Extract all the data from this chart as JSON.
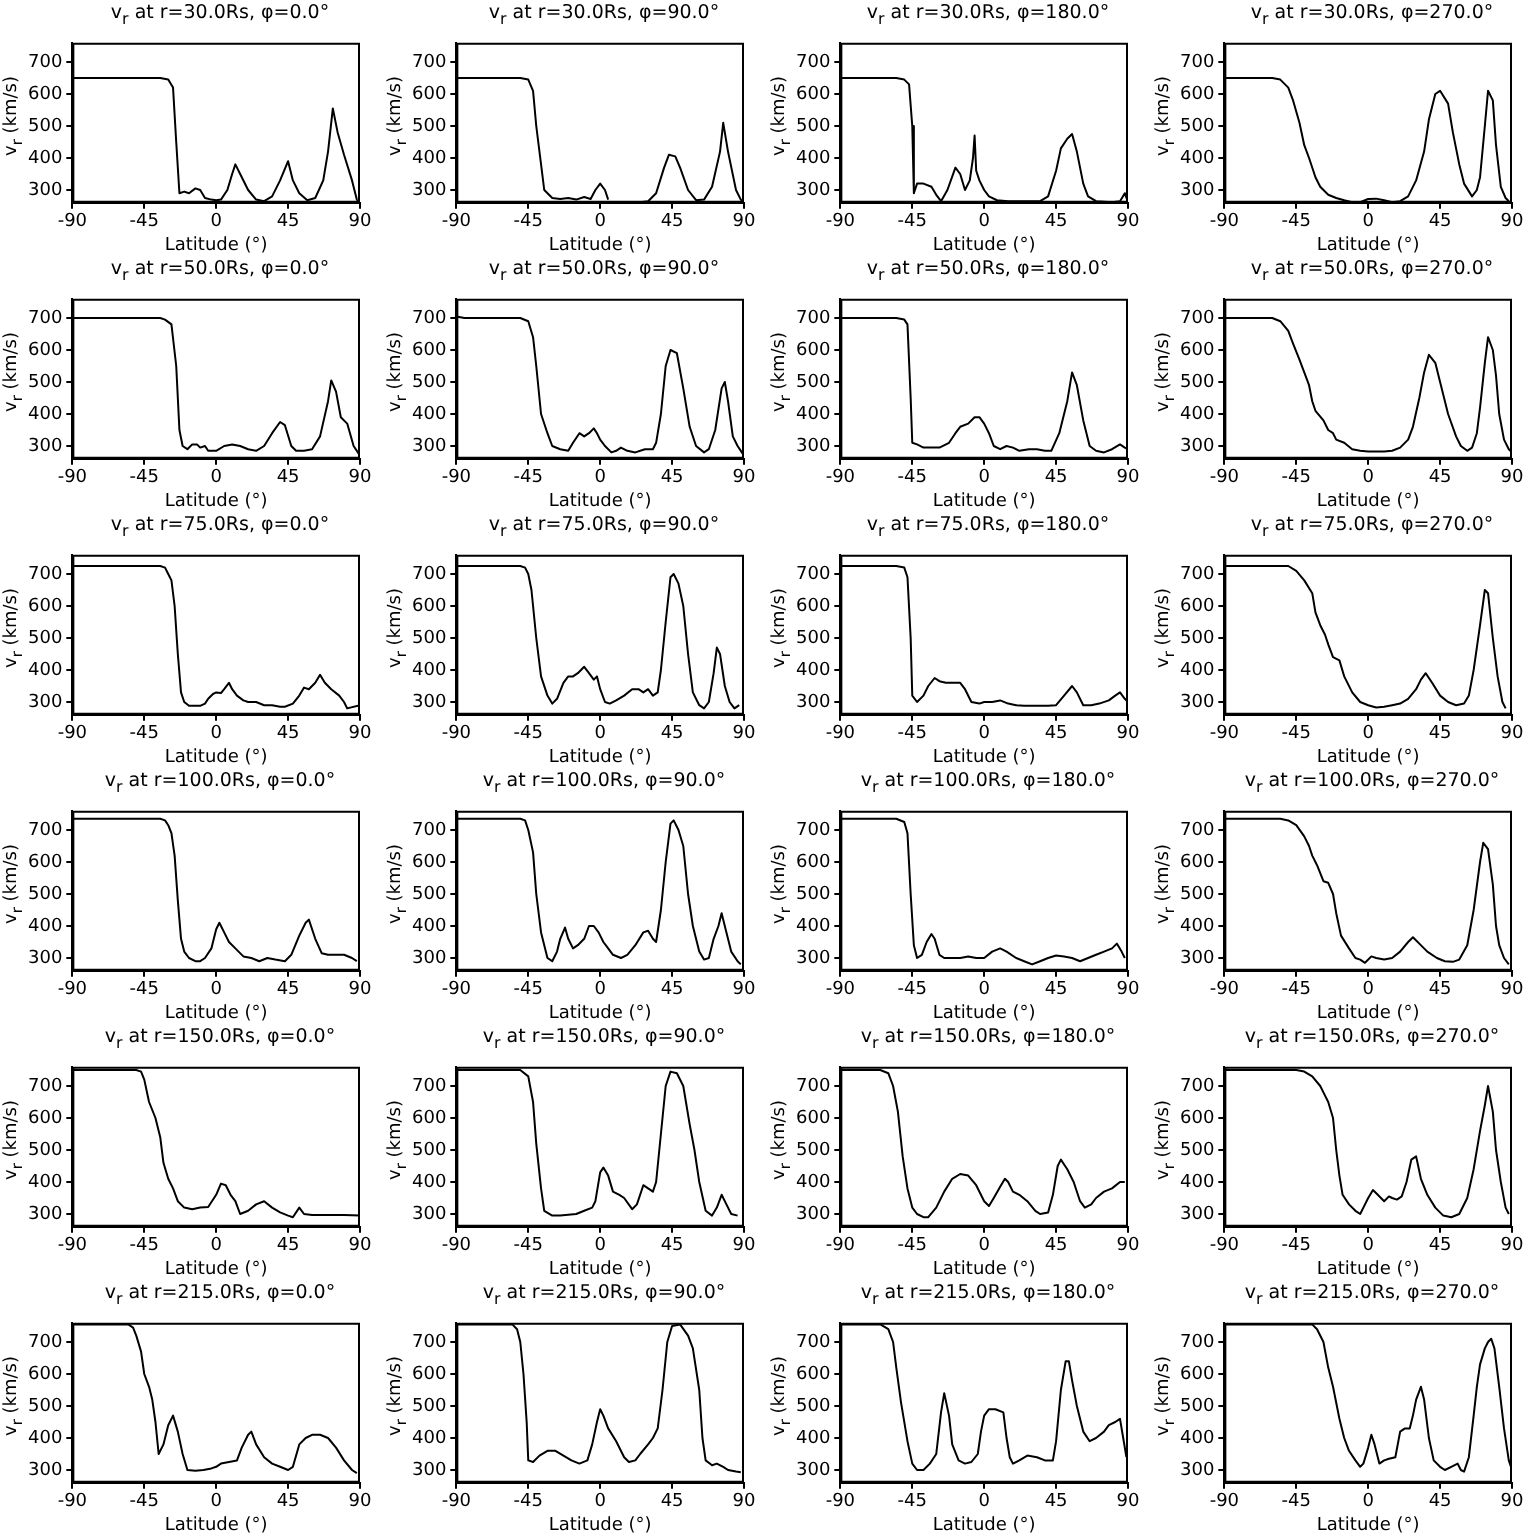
{
  "chart_data": [
    {
      "type": "line",
      "title": "v$_{r}$ at r=30.0Rs, φ=0.0°",
      "xlabel": "Latitude (°)",
      "ylabel": "v$_{r}$ (km/s)",
      "xlim": [
        -90,
        90
      ],
      "xticks": [
        -90,
        -45,
        0,
        45,
        90
      ],
      "ylim": [
        260,
        760
      ],
      "yticks": [
        300,
        400,
        500,
        600,
        700
      ],
      "color": "#000000",
      "x": [
        -90,
        -35,
        -30,
        -27,
        -25,
        -23,
        -20,
        -17,
        -13,
        -10,
        -7,
        -3,
        0,
        3,
        7,
        10,
        12,
        15,
        20,
        25,
        30,
        35,
        40,
        45,
        48,
        52,
        57,
        62,
        67,
        70,
        73,
        76,
        80,
        85,
        88,
        90
      ],
      "values": [
        650,
        650,
        645,
        620,
        450,
        290,
        295,
        290,
        305,
        300,
        275,
        270,
        268,
        270,
        300,
        350,
        380,
        350,
        300,
        270,
        265,
        280,
        330,
        390,
        330,
        290,
        268,
        275,
        330,
        420,
        555,
        480,
        410,
        330,
        270,
        260
      ]
    },
    {
      "type": "line",
      "title": "v$_{r}$ at r=30.0Rs, φ=90.0°",
      "xlabel": "Latitude (°)",
      "ylabel": "v$_{r}$ (km/s)",
      "xlim": [
        -90,
        90
      ],
      "xticks": [
        -90,
        -45,
        0,
        45,
        90
      ],
      "ylim": [
        260,
        760
      ],
      "yticks": [
        300,
        400,
        500,
        600,
        700
      ],
      "color": "#000000",
      "x": [
        -90,
        -50,
        -45,
        -42,
        -40,
        -37,
        -35,
        -30,
        -25,
        -20,
        -15,
        -10,
        -6,
        -3,
        0,
        3,
        5,
        8,
        15,
        22,
        25,
        30,
        35,
        40,
        43,
        47,
        50,
        55,
        60,
        65,
        70,
        75,
        77,
        80,
        85,
        88,
        90
      ],
      "values": [
        650,
        650,
        645,
        610,
        500,
        380,
        300,
        275,
        272,
        275,
        270,
        278,
        272,
        300,
        320,
        300,
        270,
        null,
        null,
        null,
        262,
        265,
        290,
        370,
        410,
        405,
        370,
        300,
        268,
        270,
        310,
        420,
        510,
        420,
        300,
        270,
        260
      ]
    },
    {
      "type": "line",
      "title": "v$_{r}$ at r=30.0Rs, φ=180.0°",
      "xlabel": "Latitude (°)",
      "ylabel": "v$_{r}$ (km/s)",
      "xlim": [
        -90,
        90
      ],
      "xticks": [
        -90,
        -45,
        0,
        45,
        90
      ],
      "ylim": [
        260,
        760
      ],
      "yticks": [
        300,
        400,
        500,
        600,
        700
      ],
      "color": "#000000",
      "x": [
        -90,
        -55,
        -50,
        -47,
        -45,
        -44,
        -42,
        -38,
        -33,
        -30,
        -27,
        -23,
        -18,
        -15,
        -12,
        -9,
        -7,
        -6,
        -5,
        -3,
        0,
        3,
        8,
        15,
        25,
        35,
        40,
        45,
        48,
        52,
        55,
        58,
        62,
        65,
        70,
        80,
        85,
        88,
        90
      ],
      "values": [
        650,
        650,
        645,
        630,
        500,
        290,
        320,
        320,
        310,
        285,
        265,
        300,
        370,
        350,
        300,
        330,
        400,
        470,
        360,
        330,
        300,
        280,
        268,
        265,
        265,
        265,
        280,
        360,
        430,
        460,
        475,
        420,
        320,
        280,
        265,
        262,
        265,
        290,
        262
      ]
    },
    {
      "type": "line",
      "title": "v$_{r}$ at r=30.0Rs, φ=270.0°",
      "xlabel": "Latitude (°)",
      "ylabel": "v$_{r}$ (km/s)",
      "xlim": [
        -90,
        90
      ],
      "xticks": [
        -90,
        -45,
        0,
        45,
        90
      ],
      "ylim": [
        260,
        760
      ],
      "yticks": [
        300,
        400,
        500,
        600,
        700
      ],
      "color": "#000000",
      "x": [
        -90,
        -60,
        -55,
        -50,
        -47,
        -43,
        -40,
        -37,
        -33,
        -30,
        -25,
        -20,
        -15,
        -10,
        -5,
        0,
        5,
        10,
        15,
        20,
        25,
        30,
        35,
        38,
        42,
        45,
        50,
        53,
        57,
        60,
        65,
        68,
        70,
        73,
        75,
        78,
        80,
        83,
        86,
        88
      ],
      "values": [
        650,
        650,
        645,
        620,
        580,
        510,
        440,
        400,
        340,
        310,
        285,
        275,
        268,
        262,
        262,
        272,
        273,
        268,
        262,
        265,
        280,
        330,
        420,
        520,
        600,
        610,
        570,
        480,
        380,
        320,
        280,
        300,
        340,
        500,
        610,
        580,
        440,
        310,
        275,
        265
      ]
    },
    {
      "type": "line",
      "title": "v$_{r}$ at r=50.0Rs, φ=0.0°",
      "xlabel": "Latitude (°)",
      "ylabel": "v$_{r}$ (km/s)",
      "xlim": [
        -90,
        90
      ],
      "xticks": [
        -90,
        -45,
        0,
        45,
        90
      ],
      "ylim": [
        260,
        760
      ],
      "yticks": [
        300,
        400,
        500,
        600,
        700
      ],
      "color": "#000000",
      "x": [
        -90,
        -35,
        -32,
        -28,
        -25,
        -23,
        -21,
        -18,
        -15,
        -12,
        -10,
        -7,
        -5,
        0,
        5,
        10,
        15,
        20,
        25,
        30,
        35,
        40,
        43,
        47,
        50,
        55,
        60,
        65,
        70,
        72,
        75,
        78,
        82,
        86,
        90
      ],
      "values": [
        700,
        700,
        695,
        680,
        550,
        350,
        300,
        290,
        305,
        305,
        295,
        300,
        285,
        285,
        300,
        305,
        300,
        290,
        285,
        300,
        340,
        375,
        365,
        300,
        285,
        285,
        290,
        330,
        440,
        505,
        470,
        390,
        370,
        300,
        270
      ]
    },
    {
      "type": "line",
      "title": "v$_{r}$ at r=50.0Rs, φ=90.0°",
      "xlabel": "Latitude (°)",
      "ylabel": "v$_{r}$ (km/s)",
      "xlim": [
        -90,
        90
      ],
      "xticks": [
        -90,
        -45,
        0,
        45,
        90
      ],
      "ylim": [
        260,
        760
      ],
      "yticks": [
        300,
        400,
        500,
        600,
        700
      ],
      "color": "#000000",
      "x": [
        -90,
        -85,
        -50,
        -45,
        -42,
        -40,
        -37,
        -33,
        -30,
        -25,
        -20,
        -17,
        -13,
        -10,
        -7,
        -4,
        -2,
        0,
        3,
        7,
        10,
        13,
        17,
        22,
        28,
        33,
        35,
        38,
        41,
        44,
        48,
        52,
        56,
        60,
        65,
        68,
        72,
        76,
        78,
        80,
        83,
        86,
        90
      ],
      "values": [
        705,
        700,
        700,
        690,
        640,
        550,
        400,
        340,
        300,
        290,
        285,
        310,
        340,
        330,
        340,
        355,
        340,
        320,
        300,
        280,
        285,
        295,
        285,
        280,
        290,
        290,
        310,
        400,
        550,
        600,
        590,
        480,
        360,
        300,
        280,
        290,
        350,
        480,
        500,
        440,
        330,
        300,
        270
      ]
    },
    {
      "type": "line",
      "title": "v$_{r}$ at r=50.0Rs, φ=180.0°",
      "xlabel": "Latitude (°)",
      "ylabel": "v$_{r}$ (km/s)",
      "xlim": [
        -90,
        90
      ],
      "xticks": [
        -90,
        -45,
        0,
        45,
        90
      ],
      "ylim": [
        260,
        760
      ],
      "yticks": [
        300,
        400,
        500,
        600,
        700
      ],
      "color": "#000000",
      "x": [
        -90,
        -55,
        -50,
        -48,
        -46,
        -45,
        -42,
        -38,
        -33,
        -28,
        -22,
        -18,
        -15,
        -10,
        -6,
        -3,
        0,
        3,
        6,
        10,
        14,
        18,
        22,
        28,
        33,
        38,
        42,
        47,
        52,
        55,
        58,
        62,
        66,
        70,
        75,
        80,
        85,
        88,
        90
      ],
      "values": [
        700,
        700,
        695,
        680,
        450,
        310,
        305,
        295,
        295,
        295,
        310,
        340,
        360,
        370,
        390,
        390,
        370,
        340,
        300,
        290,
        300,
        295,
        285,
        290,
        290,
        285,
        285,
        340,
        440,
        530,
        490,
        380,
        300,
        285,
        280,
        290,
        305,
        295,
        290
      ]
    },
    {
      "type": "line",
      "title": "v$_{r}$ at r=50.0Rs, φ=270.0°",
      "xlabel": "Latitude (°)",
      "ylabel": "v$_{r}$ (km/s)",
      "xlim": [
        -90,
        90
      ],
      "xticks": [
        -90,
        -45,
        0,
        45,
        90
      ],
      "ylim": [
        260,
        760
      ],
      "yticks": [
        300,
        400,
        500,
        600,
        700
      ],
      "color": "#000000",
      "x": [
        -90,
        -60,
        -55,
        -50,
        -47,
        -43,
        -40,
        -37,
        -35,
        -33,
        -28,
        -25,
        -22,
        -20,
        -15,
        -10,
        -5,
        0,
        5,
        10,
        15,
        20,
        25,
        28,
        32,
        35,
        38,
        42,
        45,
        50,
        55,
        58,
        62,
        65,
        68,
        70,
        73,
        75,
        78,
        80,
        82,
        85,
        88,
        90
      ],
      "values": [
        700,
        700,
        690,
        660,
        620,
        570,
        530,
        490,
        440,
        410,
        380,
        350,
        340,
        320,
        310,
        290,
        285,
        283,
        283,
        283,
        285,
        295,
        320,
        360,
        450,
        530,
        585,
        560,
        500,
        400,
        330,
        300,
        285,
        295,
        340,
        420,
        560,
        640,
        600,
        520,
        400,
        320,
        290,
        280
      ]
    },
    {
      "type": "line",
      "title": "v$_{r}$ at r=75.0Rs, φ=0.0°",
      "xlabel": "Latitude (°)",
      "ylabel": "v$_{r}$ (km/s)",
      "xlim": [
        -90,
        90
      ],
      "xticks": [
        -90,
        -45,
        0,
        45,
        90
      ],
      "ylim": [
        260,
        760
      ],
      "yticks": [
        300,
        400,
        500,
        600,
        700
      ],
      "color": "#000000",
      "x": [
        -90,
        -35,
        -32,
        -30,
        -28,
        -26,
        -24,
        -22,
        -20,
        -17,
        -13,
        -10,
        -7,
        -5,
        -2,
        0,
        3,
        5,
        8,
        10,
        13,
        17,
        20,
        25,
        30,
        35,
        40,
        43,
        48,
        52,
        55,
        58,
        62,
        65,
        68,
        72,
        77,
        80,
        82,
        90
      ],
      "values": [
        725,
        725,
        720,
        700,
        680,
        600,
        450,
        330,
        300,
        288,
        288,
        288,
        295,
        310,
        325,
        330,
        328,
        340,
        360,
        340,
        320,
        305,
        300,
        300,
        290,
        290,
        285,
        285,
        295,
        320,
        345,
        340,
        360,
        385,
        360,
        340,
        320,
        300,
        280,
        290
      ]
    },
    {
      "type": "line",
      "title": "v$_{r}$ at r=75.0Rs, φ=90.0°",
      "xlabel": "Latitude (°)",
      "ylabel": "v$_{r}$ (km/s)",
      "xlim": [
        -90,
        90
      ],
      "xticks": [
        -90,
        -45,
        0,
        45,
        90
      ],
      "ylim": [
        260,
        760
      ],
      "yticks": [
        300,
        400,
        500,
        600,
        700
      ],
      "color": "#000000",
      "x": [
        -90,
        -50,
        -47,
        -45,
        -43,
        -40,
        -37,
        -33,
        -30,
        -27,
        -23,
        -20,
        -17,
        -14,
        -10,
        -7,
        -4,
        -2,
        0,
        3,
        6,
        10,
        15,
        20,
        24,
        27,
        30,
        33,
        36,
        38,
        41,
        44,
        46,
        49,
        52,
        55,
        58,
        62,
        65,
        68,
        71,
        73,
        75,
        78,
        81,
        84,
        87
      ],
      "values": [
        725,
        725,
        720,
        700,
        650,
        500,
        380,
        320,
        295,
        310,
        360,
        380,
        380,
        390,
        410,
        390,
        370,
        380,
        340,
        300,
        295,
        305,
        320,
        340,
        340,
        330,
        340,
        320,
        330,
        400,
        550,
        690,
        700,
        670,
        600,
        450,
        330,
        290,
        280,
        300,
        390,
        470,
        450,
        350,
        300,
        280,
        290
      ]
    },
    {
      "type": "line",
      "title": "v$_{r}$ at r=75.0Rs, φ=180.0°",
      "xlabel": "Latitude (°)",
      "ylabel": "v$_{r}$ (km/s)",
      "xlim": [
        -90,
        90
      ],
      "xticks": [
        -90,
        -45,
        0,
        45,
        90
      ],
      "ylim": [
        260,
        760
      ],
      "yticks": [
        300,
        400,
        500,
        600,
        700
      ],
      "color": "#000000",
      "x": [
        -90,
        -55,
        -50,
        -48,
        -46,
        -45,
        -42,
        -38,
        -35,
        -31,
        -28,
        -24,
        -20,
        -15,
        -12,
        -8,
        -3,
        0,
        5,
        10,
        15,
        20,
        25,
        30,
        35,
        40,
        45,
        50,
        55,
        58,
        62,
        67,
        72,
        78,
        82,
        85,
        88,
        90
      ],
      "values": [
        725,
        725,
        720,
        690,
        500,
        320,
        300,
        320,
        350,
        375,
        365,
        360,
        360,
        360,
        340,
        300,
        295,
        300,
        300,
        305,
        295,
        290,
        288,
        288,
        288,
        288,
        290,
        320,
        350,
        330,
        290,
        290,
        295,
        305,
        320,
        330,
        310,
        300
      ]
    },
    {
      "type": "line",
      "title": "v$_{r}$ at r=75.0Rs, φ=270.0°",
      "xlabel": "Latitude (°)",
      "ylabel": "v$_{r}$ (km/s)",
      "xlim": [
        -90,
        90
      ],
      "xticks": [
        -90,
        -45,
        0,
        45,
        90
      ],
      "ylim": [
        260,
        760
      ],
      "yticks": [
        300,
        400,
        500,
        600,
        700
      ],
      "color": "#000000",
      "x": [
        -90,
        -50,
        -45,
        -40,
        -35,
        -33,
        -30,
        -27,
        -25,
        -22,
        -18,
        -15,
        -10,
        -5,
        0,
        5,
        10,
        15,
        20,
        25,
        30,
        33,
        36,
        40,
        45,
        50,
        55,
        60,
        63,
        66,
        70,
        73,
        75,
        78,
        81,
        84,
        86
      ],
      "values": [
        725,
        725,
        710,
        680,
        640,
        580,
        540,
        510,
        480,
        440,
        430,
        380,
        330,
        300,
        290,
        283,
        285,
        290,
        295,
        310,
        340,
        370,
        390,
        360,
        320,
        300,
        290,
        295,
        320,
        400,
        540,
        650,
        640,
        500,
        380,
        300,
        280
      ]
    },
    {
      "type": "line",
      "title": "v$_{r}$ at r=100.0Rs, φ=0.0°",
      "xlabel": "Latitude (°)",
      "ylabel": "v$_{r}$ (km/s)",
      "xlim": [
        -90,
        90
      ],
      "xticks": [
        -90,
        -45,
        0,
        45,
        90
      ],
      "ylim": [
        260,
        760
      ],
      "yticks": [
        300,
        400,
        500,
        600,
        700
      ],
      "color": "#000000",
      "x": [
        -90,
        -35,
        -32,
        -30,
        -28,
        -26,
        -24,
        -22,
        -20,
        -17,
        -13,
        -10,
        -7,
        -3,
        0,
        2,
        5,
        8,
        12,
        17,
        22,
        27,
        32,
        37,
        43,
        47,
        52,
        56,
        58,
        62,
        66,
        70,
        75,
        80,
        85,
        88
      ],
      "values": [
        735,
        735,
        730,
        715,
        690,
        620,
        480,
        360,
        320,
        300,
        290,
        290,
        300,
        330,
        390,
        410,
        380,
        350,
        330,
        305,
        300,
        290,
        300,
        295,
        290,
        310,
        370,
        410,
        420,
        360,
        315,
        310,
        310,
        310,
        300,
        290
      ]
    },
    {
      "type": "line",
      "title": "v$_{r}$ at r=100.0Rs, φ=90.0°",
      "xlabel": "Latitude (°)",
      "ylabel": "v$_{r}$ (km/s)",
      "xlim": [
        -90,
        90
      ],
      "xticks": [
        -90,
        -45,
        0,
        45,
        90
      ],
      "ylim": [
        260,
        760
      ],
      "yticks": [
        300,
        400,
        500,
        600,
        700
      ],
      "color": "#000000",
      "x": [
        -90,
        -50,
        -47,
        -45,
        -42,
        -40,
        -37,
        -33,
        -30,
        -27,
        -25,
        -22,
        -20,
        -17,
        -14,
        -10,
        -7,
        -4,
        -1,
        2,
        5,
        8,
        13,
        17,
        22,
        27,
        30,
        33,
        35,
        38,
        41,
        44,
        46,
        49,
        52,
        55,
        58,
        62,
        65,
        68,
        71,
        74,
        76,
        79,
        82,
        86,
        88
      ],
      "values": [
        735,
        735,
        730,
        700,
        630,
        500,
        380,
        300,
        290,
        320,
        360,
        395,
        360,
        330,
        340,
        360,
        400,
        400,
        380,
        350,
        330,
        310,
        300,
        310,
        340,
        380,
        385,
        360,
        350,
        450,
        600,
        720,
        730,
        700,
        650,
        500,
        400,
        320,
        295,
        300,
        360,
        400,
        440,
        380,
        320,
        290,
        280
      ]
    },
    {
      "type": "line",
      "title": "v$_{r}$ at r=100.0Rs, φ=180.0°",
      "xlabel": "Latitude (°)",
      "ylabel": "v$_{r}$ (km/s)",
      "xlim": [
        -90,
        90
      ],
      "xticks": [
        -90,
        -45,
        0,
        45,
        90
      ],
      "ylim": [
        260,
        760
      ],
      "yticks": [
        300,
        400,
        500,
        600,
        700
      ],
      "color": "#000000",
      "x": [
        -90,
        -55,
        -50,
        -48,
        -46,
        -44,
        -42,
        -39,
        -36,
        -33,
        -31,
        -28,
        -25,
        -20,
        -15,
        -10,
        -5,
        0,
        5,
        10,
        14,
        20,
        25,
        30,
        35,
        40,
        45,
        50,
        55,
        60,
        65,
        70,
        75,
        80,
        83,
        86,
        88
      ],
      "values": [
        735,
        735,
        725,
        690,
        500,
        340,
        300,
        310,
        350,
        375,
        360,
        310,
        300,
        300,
        300,
        305,
        300,
        300,
        320,
        330,
        320,
        300,
        290,
        280,
        290,
        300,
        308,
        305,
        300,
        290,
        300,
        310,
        320,
        330,
        345,
        320,
        300
      ]
    },
    {
      "type": "line",
      "title": "v$_{r}$ at r=100.0Rs, φ=270.0°",
      "xlabel": "Latitude (°)",
      "ylabel": "v$_{r}$ (km/s)",
      "xlim": [
        -90,
        90
      ],
      "xticks": [
        -90,
        -45,
        0,
        45,
        90
      ],
      "ylim": [
        260,
        760
      ],
      "yticks": [
        300,
        400,
        500,
        600,
        700
      ],
      "color": "#000000",
      "x": [
        -90,
        -55,
        -50,
        -45,
        -40,
        -37,
        -35,
        -32,
        -28,
        -25,
        -22,
        -20,
        -17,
        -12,
        -8,
        -5,
        -2,
        2,
        5,
        10,
        15,
        20,
        25,
        28,
        32,
        37,
        43,
        48,
        53,
        57,
        62,
        66,
        70,
        72,
        75,
        78,
        80,
        82,
        85,
        88
      ],
      "values": [
        735,
        735,
        730,
        715,
        680,
        650,
        620,
        590,
        540,
        535,
        500,
        440,
        370,
        330,
        300,
        295,
        285,
        305,
        300,
        295,
        300,
        320,
        350,
        365,
        345,
        320,
        300,
        290,
        288,
        295,
        340,
        450,
        600,
        660,
        640,
        530,
        400,
        340,
        300,
        280
      ]
    },
    {
      "type": "line",
      "title": "v$_{r}$ at r=150.0Rs, φ=0.0°",
      "xlabel": "Latitude (°)",
      "ylabel": "v$_{r}$ (km/s)",
      "xlim": [
        -90,
        90
      ],
      "xticks": [
        -90,
        -45,
        0,
        45,
        90
      ],
      "ylim": [
        260,
        760
      ],
      "yticks": [
        300,
        400,
        500,
        600,
        700
      ],
      "color": "#000000",
      "x": [
        -90,
        -50,
        -47,
        -45,
        -42,
        -38,
        -35,
        -33,
        -30,
        -27,
        -24,
        -20,
        -15,
        -10,
        -5,
        0,
        3,
        6,
        9,
        12,
        15,
        20,
        25,
        30,
        35,
        40,
        45,
        48,
        52,
        55,
        60,
        70,
        80,
        90
      ],
      "values": [
        750,
        750,
        745,
        720,
        650,
        600,
        540,
        460,
        410,
        380,
        340,
        320,
        315,
        320,
        322,
        360,
        395,
        390,
        360,
        340,
        300,
        310,
        330,
        340,
        320,
        305,
        295,
        290,
        320,
        300,
        297,
        297,
        297,
        295
      ]
    },
    {
      "type": "line",
      "title": "v$_{r}$ at r=150.0Rs, φ=90.0°",
      "xlabel": "Latitude (°)",
      "ylabel": "v$_{r}$ (km/s)",
      "xlim": [
        -90,
        90
      ],
      "xticks": [
        -90,
        -45,
        0,
        45,
        90
      ],
      "ylim": [
        260,
        760
      ],
      "yticks": [
        300,
        400,
        500,
        600,
        700
      ],
      "color": "#000000",
      "x": [
        -90,
        -50,
        -45,
        -42,
        -40,
        -37,
        -35,
        -30,
        -25,
        -20,
        -15,
        -10,
        -5,
        -3,
        0,
        2,
        5,
        8,
        12,
        15,
        20,
        23,
        27,
        30,
        33,
        35,
        38,
        41,
        44,
        48,
        52,
        56,
        59,
        62,
        66,
        70,
        73,
        76,
        79,
        82,
        86
      ],
      "values": [
        750,
        750,
        730,
        650,
        520,
        380,
        310,
        295,
        295,
        298,
        300,
        310,
        320,
        340,
        430,
        445,
        420,
        370,
        360,
        350,
        315,
        330,
        390,
        380,
        370,
        400,
        550,
        700,
        745,
        740,
        700,
        580,
        500,
        400,
        310,
        295,
        320,
        360,
        330,
        300,
        295
      ]
    },
    {
      "type": "line",
      "title": "v$_{r}$ at r=150.0Rs, φ=180.0°",
      "xlabel": "Latitude (°)",
      "ylabel": "v$_{r}$ (km/s)",
      "xlim": [
        -90,
        90
      ],
      "xticks": [
        -90,
        -45,
        0,
        45,
        90
      ],
      "ylim": [
        260,
        760
      ],
      "yticks": [
        300,
        400,
        500,
        600,
        700
      ],
      "color": "#000000",
      "x": [
        -90,
        -65,
        -60,
        -57,
        -54,
        -51,
        -48,
        -45,
        -42,
        -38,
        -35,
        -30,
        -25,
        -20,
        -15,
        -10,
        -5,
        0,
        3,
        6,
        10,
        13,
        15,
        18,
        22,
        27,
        32,
        35,
        40,
        43,
        46,
        48,
        52,
        56,
        60,
        63,
        67,
        70,
        75,
        80,
        85,
        88
      ],
      "values": [
        750,
        750,
        740,
        700,
        620,
        480,
        380,
        320,
        300,
        290,
        290,
        320,
        370,
        410,
        425,
        420,
        390,
        340,
        325,
        350,
        385,
        410,
        400,
        370,
        360,
        340,
        310,
        300,
        305,
        360,
        450,
        470,
        440,
        400,
        340,
        320,
        330,
        350,
        370,
        380,
        400,
        400
      ]
    },
    {
      "type": "line",
      "title": "v$_{r}$ at r=150.0Rs, φ=270.0°",
      "xlabel": "Latitude (°)",
      "ylabel": "v$_{r}$ (km/s)",
      "xlim": [
        -90,
        90
      ],
      "xticks": [
        -90,
        -45,
        0,
        45,
        90
      ],
      "ylim": [
        260,
        760
      ],
      "yticks": [
        300,
        400,
        500,
        600,
        700
      ],
      "color": "#000000",
      "x": [
        -90,
        -45,
        -40,
        -35,
        -30,
        -27,
        -25,
        -22,
        -20,
        -18,
        -16,
        -12,
        -8,
        -5,
        -3,
        0,
        3,
        6,
        10,
        13,
        15,
        18,
        21,
        24,
        27,
        30,
        33,
        37,
        42,
        47,
        52,
        57,
        62,
        66,
        70,
        73,
        75,
        78,
        80,
        83,
        86,
        88
      ],
      "values": [
        750,
        750,
        745,
        730,
        700,
        670,
        650,
        600,
        500,
        420,
        360,
        330,
        310,
        300,
        320,
        350,
        375,
        360,
        340,
        355,
        350,
        345,
        355,
        400,
        470,
        480,
        410,
        360,
        320,
        295,
        290,
        300,
        350,
        440,
        560,
        640,
        700,
        620,
        500,
        400,
        320,
        300
      ]
    },
    {
      "type": "line",
      "title": "v$_{r}$ at r=215.0Rs, φ=0.0°",
      "xlabel": "Latitude (°)",
      "ylabel": "v$_{r}$ (km/s)",
      "xlim": [
        -90,
        90
      ],
      "xticks": [
        -90,
        -45,
        0,
        45,
        90
      ],
      "ylim": [
        260,
        760
      ],
      "yticks": [
        300,
        400,
        500,
        600,
        700
      ],
      "color": "#000000",
      "x": [
        -90,
        -55,
        -52,
        -50,
        -47,
        -45,
        -42,
        -40,
        -38,
        -36,
        -33,
        -30,
        -27,
        -24,
        -21,
        -18,
        -13,
        -8,
        -3,
        0,
        3,
        8,
        13,
        16,
        20,
        22,
        25,
        30,
        35,
        40,
        45,
        48,
        52,
        56,
        60,
        65,
        70,
        75,
        80,
        85,
        88
      ],
      "values": [
        755,
        755,
        745,
        720,
        670,
        600,
        560,
        520,
        450,
        350,
        380,
        440,
        470,
        420,
        350,
        300,
        298,
        300,
        305,
        310,
        320,
        325,
        330,
        370,
        410,
        420,
        380,
        340,
        320,
        310,
        300,
        310,
        380,
        400,
        410,
        410,
        400,
        370,
        330,
        300,
        290
      ]
    },
    {
      "type": "line",
      "title": "v$_{r}$ at r=215.0Rs, φ=90.0°",
      "xlabel": "Latitude (°)",
      "ylabel": "v$_{r}$ (km/s)",
      "xlim": [
        -90,
        90
      ],
      "xticks": [
        -90,
        -45,
        0,
        45,
        90
      ],
      "ylim": [
        260,
        760
      ],
      "yticks": [
        300,
        400,
        500,
        600,
        700
      ],
      "color": "#000000",
      "x": [
        -90,
        -55,
        -52,
        -50,
        -48,
        -46,
        -45,
        -42,
        -38,
        -33,
        -28,
        -23,
        -18,
        -13,
        -8,
        -5,
        -2,
        0,
        2,
        5,
        10,
        15,
        18,
        22,
        25,
        30,
        33,
        36,
        39,
        42,
        45,
        50,
        55,
        58,
        62,
        64,
        66,
        70,
        73,
        77,
        80,
        85,
        88
      ],
      "values": [
        755,
        755,
        740,
        700,
        600,
        450,
        330,
        325,
        345,
        360,
        360,
        345,
        330,
        320,
        330,
        380,
        450,
        490,
        470,
        430,
        390,
        340,
        325,
        330,
        350,
        380,
        400,
        430,
        550,
        700,
        750,
        755,
        720,
        680,
        550,
        400,
        330,
        315,
        320,
        310,
        300,
        295,
        293
      ]
    },
    {
      "type": "line",
      "title": "v$_{r}$ at r=215.0Rs, φ=180.0°",
      "xlabel": "Latitude (°)",
      "ylabel": "v$_{r}$ (km/s)",
      "xlim": [
        -90,
        90
      ],
      "xticks": [
        -90,
        -45,
        0,
        45,
        90
      ],
      "ylim": [
        260,
        760
      ],
      "yticks": [
        300,
        400,
        500,
        600,
        700
      ],
      "color": "#000000",
      "x": [
        -90,
        -65,
        -60,
        -57,
        -55,
        -52,
        -48,
        -45,
        -42,
        -38,
        -34,
        -30,
        -27,
        -25,
        -22,
        -20,
        -16,
        -12,
        -8,
        -4,
        -2,
        0,
        3,
        7,
        12,
        14,
        16,
        18,
        22,
        27,
        33,
        38,
        43,
        45,
        48,
        51,
        53,
        55,
        58,
        62,
        66,
        70,
        75,
        78,
        82,
        85,
        87,
        89
      ],
      "values": [
        755,
        755,
        740,
        700,
        620,
        510,
        390,
        320,
        300,
        300,
        320,
        350,
        480,
        540,
        470,
        380,
        330,
        320,
        325,
        350,
        420,
        470,
        490,
        490,
        480,
        400,
        340,
        320,
        330,
        345,
        340,
        330,
        330,
        390,
        550,
        640,
        640,
        580,
        500,
        420,
        390,
        400,
        420,
        440,
        450,
        460,
        400,
        340
      ]
    },
    {
      "type": "line",
      "title": "v$_{r}$ at r=215.0Rs, φ=270.0°",
      "xlabel": "Latitude (°)",
      "ylabel": "v$_{r}$ (km/s)",
      "xlim": [
        -90,
        90
      ],
      "xticks": [
        -90,
        -45,
        0,
        45,
        90
      ],
      "ylim": [
        260,
        760
      ],
      "yticks": [
        300,
        400,
        500,
        600,
        700
      ],
      "color": "#000000",
      "x": [
        -90,
        -35,
        -32,
        -28,
        -25,
        -22,
        -20,
        -18,
        -15,
        -12,
        -8,
        -5,
        -3,
        0,
        2,
        4,
        7,
        10,
        13,
        17,
        20,
        23,
        26,
        28,
        30,
        33,
        35,
        38,
        41,
        45,
        48,
        52,
        56,
        58,
        60,
        63,
        66,
        68,
        70,
        73,
        75,
        77,
        79,
        82,
        85,
        88,
        90
      ],
      "values": [
        755,
        755,
        740,
        700,
        620,
        560,
        510,
        460,
        400,
        360,
        330,
        310,
        320,
        370,
        410,
        380,
        320,
        330,
        335,
        340,
        420,
        430,
        430,
        470,
        520,
        560,
        520,
        400,
        330,
        310,
        300,
        310,
        320,
        300,
        295,
        340,
        470,
        560,
        630,
        680,
        700,
        710,
        680,
        560,
        430,
        330,
        300
      ]
    }
  ]
}
